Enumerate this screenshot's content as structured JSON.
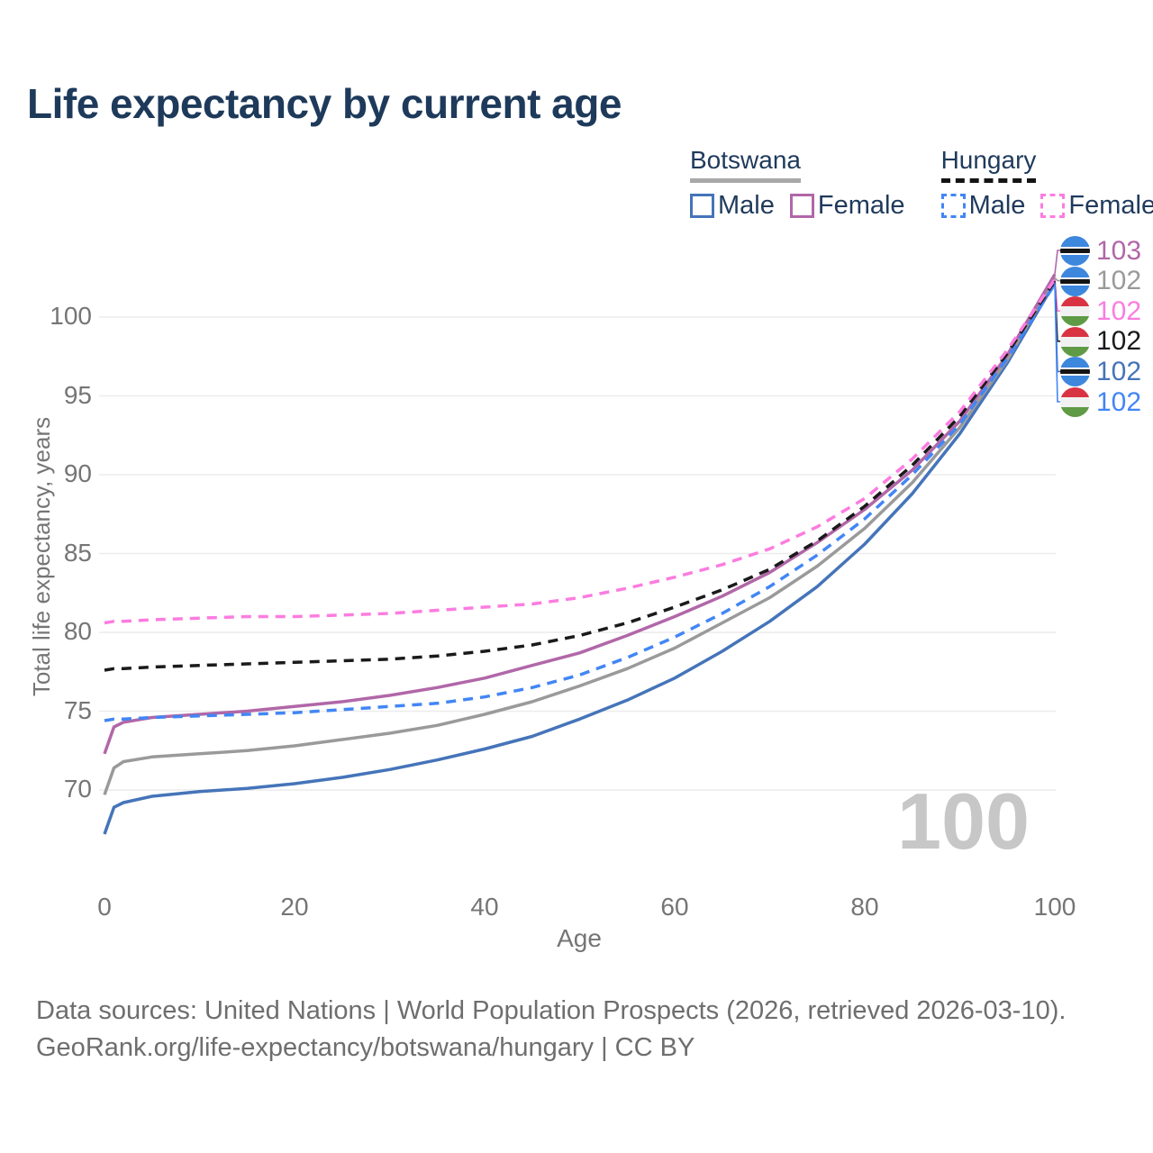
{
  "title": "Life expectancy by current age",
  "legend": {
    "groups": [
      {
        "label": "Botswana",
        "underline_style": "solid",
        "underline_color": "#a8a8a8",
        "items": [
          {
            "label": "Male",
            "color": "#4574b9",
            "dashed": false,
            "series": "Botswana Male"
          },
          {
            "label": "Female",
            "color": "#b167a8",
            "dashed": false,
            "series": "Botswana Female"
          }
        ]
      },
      {
        "label": "Hungary",
        "underline_style": "dashed",
        "underline_color": "#141414",
        "items": [
          {
            "label": "Male",
            "color": "#4286f5",
            "dashed": true,
            "series": "Hungary Male"
          },
          {
            "label": "Female",
            "color": "#fc7ce0",
            "dashed": true,
            "series": "Hungary Female"
          }
        ]
      }
    ]
  },
  "chart_data": {
    "type": "line",
    "title": "Life expectancy by current age",
    "xlabel": "Age",
    "ylabel": "Total life expectancy, years",
    "x_ticks": [
      0,
      20,
      40,
      60,
      80,
      100
    ],
    "y_ticks": [
      70,
      75,
      80,
      85,
      90,
      95,
      100
    ],
    "xlim": [
      0,
      100
    ],
    "ylim": [
      66.5,
      103.5
    ],
    "grid": "horizontal-only",
    "legend_position": "top-right",
    "x": [
      0,
      1,
      2,
      5,
      10,
      15,
      20,
      25,
      30,
      35,
      40,
      45,
      50,
      55,
      60,
      65,
      70,
      75,
      80,
      85,
      90,
      95,
      100
    ],
    "series": [
      {
        "name": "Botswana Male",
        "country": "Botswana",
        "sex": "Male",
        "color": "#4574b9",
        "dashed": false,
        "values": [
          67.2,
          68.9,
          69.2,
          69.6,
          69.9,
          70.1,
          70.4,
          70.8,
          71.3,
          71.9,
          72.6,
          73.4,
          74.5,
          75.7,
          77.1,
          78.8,
          80.7,
          82.9,
          85.6,
          88.8,
          92.6,
          97.1,
          102.2
        ]
      },
      {
        "name": "Botswana",
        "country": "Botswana",
        "sex": "Both",
        "color": "#9a9a9a",
        "dashed": false,
        "values": [
          69.7,
          71.4,
          71.8,
          72.1,
          72.3,
          72.5,
          72.8,
          73.2,
          73.6,
          74.1,
          74.8,
          75.6,
          76.6,
          77.7,
          79.0,
          80.6,
          82.2,
          84.2,
          86.6,
          89.5,
          93.0,
          97.3,
          102.5
        ]
      },
      {
        "name": "Botswana Female",
        "country": "Botswana",
        "sex": "Female",
        "color": "#b167a8",
        "dashed": false,
        "values": [
          72.3,
          74.0,
          74.3,
          74.6,
          74.8,
          75.0,
          75.3,
          75.6,
          76.0,
          76.5,
          77.1,
          77.9,
          78.7,
          79.8,
          81.0,
          82.3,
          83.8,
          85.7,
          87.8,
          90.3,
          93.4,
          97.6,
          102.7
        ]
      },
      {
        "name": "Hungary Male",
        "country": "Hungary",
        "sex": "Male",
        "color": "#4286f5",
        "dashed": true,
        "values": [
          74.4,
          74.5,
          74.5,
          74.6,
          74.7,
          74.8,
          74.9,
          75.1,
          75.3,
          75.5,
          75.9,
          76.5,
          77.3,
          78.4,
          79.7,
          81.2,
          82.9,
          84.9,
          87.2,
          90.0,
          93.2,
          97.4,
          102.1
        ]
      },
      {
        "name": "Hungary",
        "country": "Hungary",
        "sex": "Both",
        "color": "#1a1a1a",
        "dashed": true,
        "values": [
          77.6,
          77.7,
          77.7,
          77.8,
          77.9,
          78.0,
          78.1,
          78.2,
          78.3,
          78.5,
          78.8,
          79.2,
          79.8,
          80.6,
          81.6,
          82.7,
          84.0,
          85.8,
          88.0,
          90.6,
          93.7,
          97.7,
          102.3
        ]
      },
      {
        "name": "Hungary Female",
        "country": "Hungary",
        "sex": "Female",
        "color": "#fc7ce0",
        "dashed": true,
        "values": [
          80.6,
          80.7,
          80.7,
          80.8,
          80.9,
          81.0,
          81.0,
          81.1,
          81.2,
          81.4,
          81.6,
          81.8,
          82.2,
          82.8,
          83.5,
          84.3,
          85.3,
          86.7,
          88.5,
          91.0,
          94.0,
          97.9,
          102.4
        ]
      }
    ],
    "end_labels": [
      {
        "value": "103",
        "series": "Botswana Female",
        "flag": "botswana",
        "color": "#b167a8"
      },
      {
        "value": "102",
        "series": "Botswana",
        "flag": "botswana",
        "color": "#9a9a9a"
      },
      {
        "value": "102",
        "series": "Hungary Female",
        "flag": "hungary",
        "color": "#fc7ce0"
      },
      {
        "value": "102",
        "series": "Hungary",
        "flag": "hungary",
        "color": "#1a1a1a"
      },
      {
        "value": "102",
        "series": "Botswana Male",
        "flag": "botswana",
        "color": "#4574b9"
      },
      {
        "value": "102",
        "series": "Hungary Male",
        "flag": "hungary",
        "color": "#4286f5"
      }
    ],
    "annotations": {
      "current_age_watermark": "100"
    }
  },
  "watermark": "100",
  "footer": {
    "line1": "Data sources: United Nations | World Population Prospects (2026, retrieved 2026-03-10).",
    "line2": "GeoRank.org/life-expectancy/botswana/hungary | CC BY"
  }
}
